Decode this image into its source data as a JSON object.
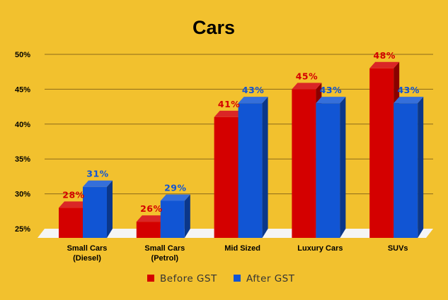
{
  "chart_data": {
    "type": "bar",
    "title": "Cars",
    "xlabel": "",
    "ylabel": "",
    "categories": [
      [
        "Small Cars",
        "(Diesel)"
      ],
      [
        "Small Cars",
        "(Petrol)"
      ],
      [
        "Mid Sized"
      ],
      [
        "Luxury Cars"
      ],
      [
        "SUVs"
      ]
    ],
    "series": [
      {
        "name": "Before GST",
        "values": [
          28,
          26,
          41,
          45,
          48
        ],
        "labels": [
          "28%",
          "26%",
          "41%",
          "45%",
          "48%"
        ],
        "color": "#D40000"
      },
      {
        "name": "After GST",
        "values": [
          31,
          29,
          43,
          43,
          43
        ],
        "labels": [
          "31%",
          "29%",
          "43%",
          "43%",
          "43%"
        ],
        "color": "#1155D4"
      }
    ],
    "ylim": [
      25,
      50
    ],
    "yticks": [
      25,
      30,
      35,
      40,
      45,
      50
    ],
    "ytick_labels": [
      "25%",
      "30%",
      "35%",
      "40%",
      "45%",
      "50%"
    ],
    "grid": true,
    "legend": "bottom",
    "style": "3d-bar",
    "colors": {
      "background": "#F2C12E",
      "title": "#1F4E8C",
      "gridline": "#8C6A1A",
      "floor": "#F5F5F5"
    }
  }
}
